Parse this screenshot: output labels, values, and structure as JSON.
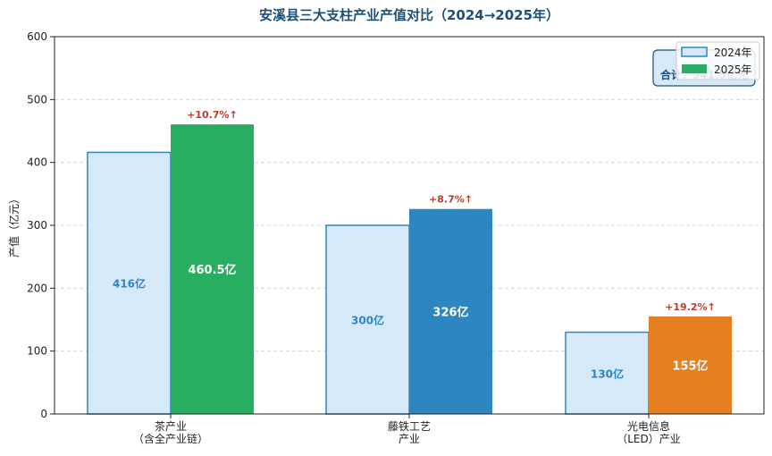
{
  "chart_data": {
    "type": "bar",
    "title": "安溪县三大支柱产业产值对比（2024→2025年）",
    "ylabel": "产值（亿元）",
    "ylim": [
      0,
      600
    ],
    "yticks": [
      "0",
      "100",
      "200",
      "300",
      "400",
      "500",
      "600"
    ],
    "grid": true,
    "legend_position": "top-right",
    "categories": [
      [
        "茶产业",
        "（含全产业链）"
      ],
      [
        "藤铁工艺",
        "产业"
      ],
      [
        "光电信息",
        "（LED）产业"
      ]
    ],
    "series": [
      {
        "name": "2024年",
        "values": [
          416,
          300,
          130
        ],
        "labels": [
          "416亿",
          "300亿",
          "130亿"
        ],
        "color": "#d6e9f8",
        "edge": "#2e86c1"
      },
      {
        "name": "2025年",
        "values": [
          460.5,
          326,
          155
        ],
        "labels": [
          "460.5亿",
          "326亿",
          "155亿"
        ],
        "colors": [
          "#27ae60",
          "#2e86c1",
          "#e67e22"
        ],
        "legend_color": "#27ae60"
      }
    ],
    "growth_labels": [
      "+10.7%↑",
      "+8.7%↑",
      "+19.2%↑"
    ],
    "total_annotation": "合计：941.5亿元"
  }
}
